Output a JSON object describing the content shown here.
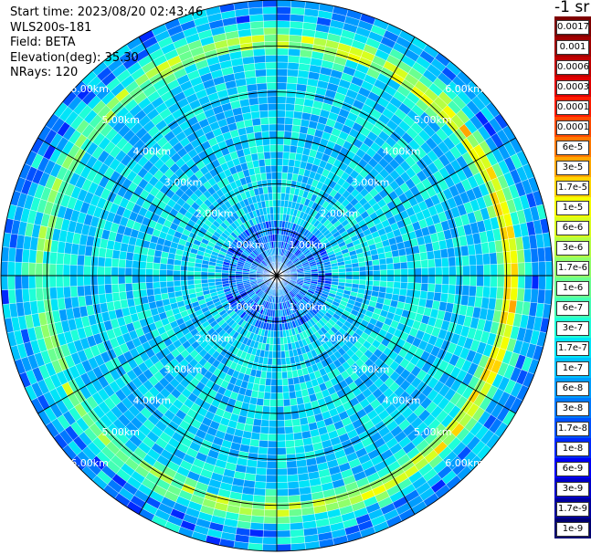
{
  "header": {
    "start_time": "Start time: 2023/08/20 02:43:46",
    "instrument": "WLS200s-181",
    "field": "Field: BETA",
    "elevation": "Elevation(deg): 35.30",
    "nrays": "NRays: 120"
  },
  "units_label": "-1 sr",
  "colorbar": [
    {
      "label": "0.0017",
      "color": "#7f0000"
    },
    {
      "label": "0.001",
      "color": "#a00000"
    },
    {
      "label": "0.0006",
      "color": "#c00000"
    },
    {
      "label": "0.0003",
      "color": "#e00000"
    },
    {
      "label": "0.00017",
      "color": "#ff1c00"
    },
    {
      "label": "0.0001",
      "color": "#ff4a00"
    },
    {
      "label": "6e-5",
      "color": "#ff7800"
    },
    {
      "label": "3e-5",
      "color": "#ffa600"
    },
    {
      "label": "1.7e-5",
      "color": "#ffd400"
    },
    {
      "label": "1e-5",
      "color": "#f4ff00"
    },
    {
      "label": "6e-6",
      "color": "#d8ff1e"
    },
    {
      "label": "3e-6",
      "color": "#b4ff44"
    },
    {
      "label": "1.7e-6",
      "color": "#90ff6a"
    },
    {
      "label": "1e-6",
      "color": "#6aff90"
    },
    {
      "label": "6e-7",
      "color": "#44ffb4"
    },
    {
      "label": "3e-7",
      "color": "#1effd8"
    },
    {
      "label": "1.7e-7",
      "color": "#00e4f8"
    },
    {
      "label": "1e-7",
      "color": "#00c0ff"
    },
    {
      "label": "6e-8",
      "color": "#009cff"
    },
    {
      "label": "3e-8",
      "color": "#0078ff"
    },
    {
      "label": "1.7e-8",
      "color": "#0050ff"
    },
    {
      "label": "1e-8",
      "color": "#0028ff"
    },
    {
      "label": "6e-9",
      "color": "#0000f4"
    },
    {
      "label": "3e-9",
      "color": "#0000c8"
    },
    {
      "label": "1.7e-9",
      "color": "#00009c"
    },
    {
      "label": "1e-9",
      "color": "#000070"
    }
  ],
  "range_rings": [
    "1.00km",
    "2.00km",
    "3.00km",
    "4.00km",
    "5.00km",
    "6.00km"
  ],
  "plot_colors": {
    "ring_line": "#000000",
    "ray_line": "#ffffff",
    "grid_label": "#ffffff"
  }
}
